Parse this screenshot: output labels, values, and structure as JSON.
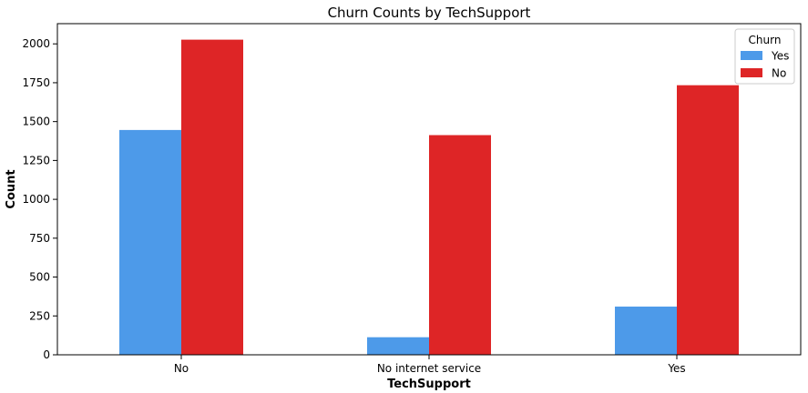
{
  "chart_data": {
    "type": "bar",
    "title": "Churn Counts by TechSupport",
    "xlabel": "TechSupport",
    "ylabel": "Count",
    "categories": [
      "No",
      "No internet service",
      "Yes"
    ],
    "series": [
      {
        "name": "Yes",
        "color": "#4d9ae9",
        "values": [
          1446,
          113,
          310
        ]
      },
      {
        "name": "No",
        "color": "#de2526",
        "values": [
          2027,
          1413,
          1734
        ]
      }
    ],
    "ylim": [
      0,
      2130
    ],
    "yticks": [
      0,
      250,
      500,
      750,
      1000,
      1250,
      1500,
      1750,
      2000
    ],
    "yticks_labels": [
      "0",
      "250",
      "500",
      "750",
      "1000",
      "1250",
      "1500",
      "1750",
      "2000"
    ],
    "grid": false,
    "legend": {
      "title": "Churn",
      "placement": "top-right"
    }
  }
}
